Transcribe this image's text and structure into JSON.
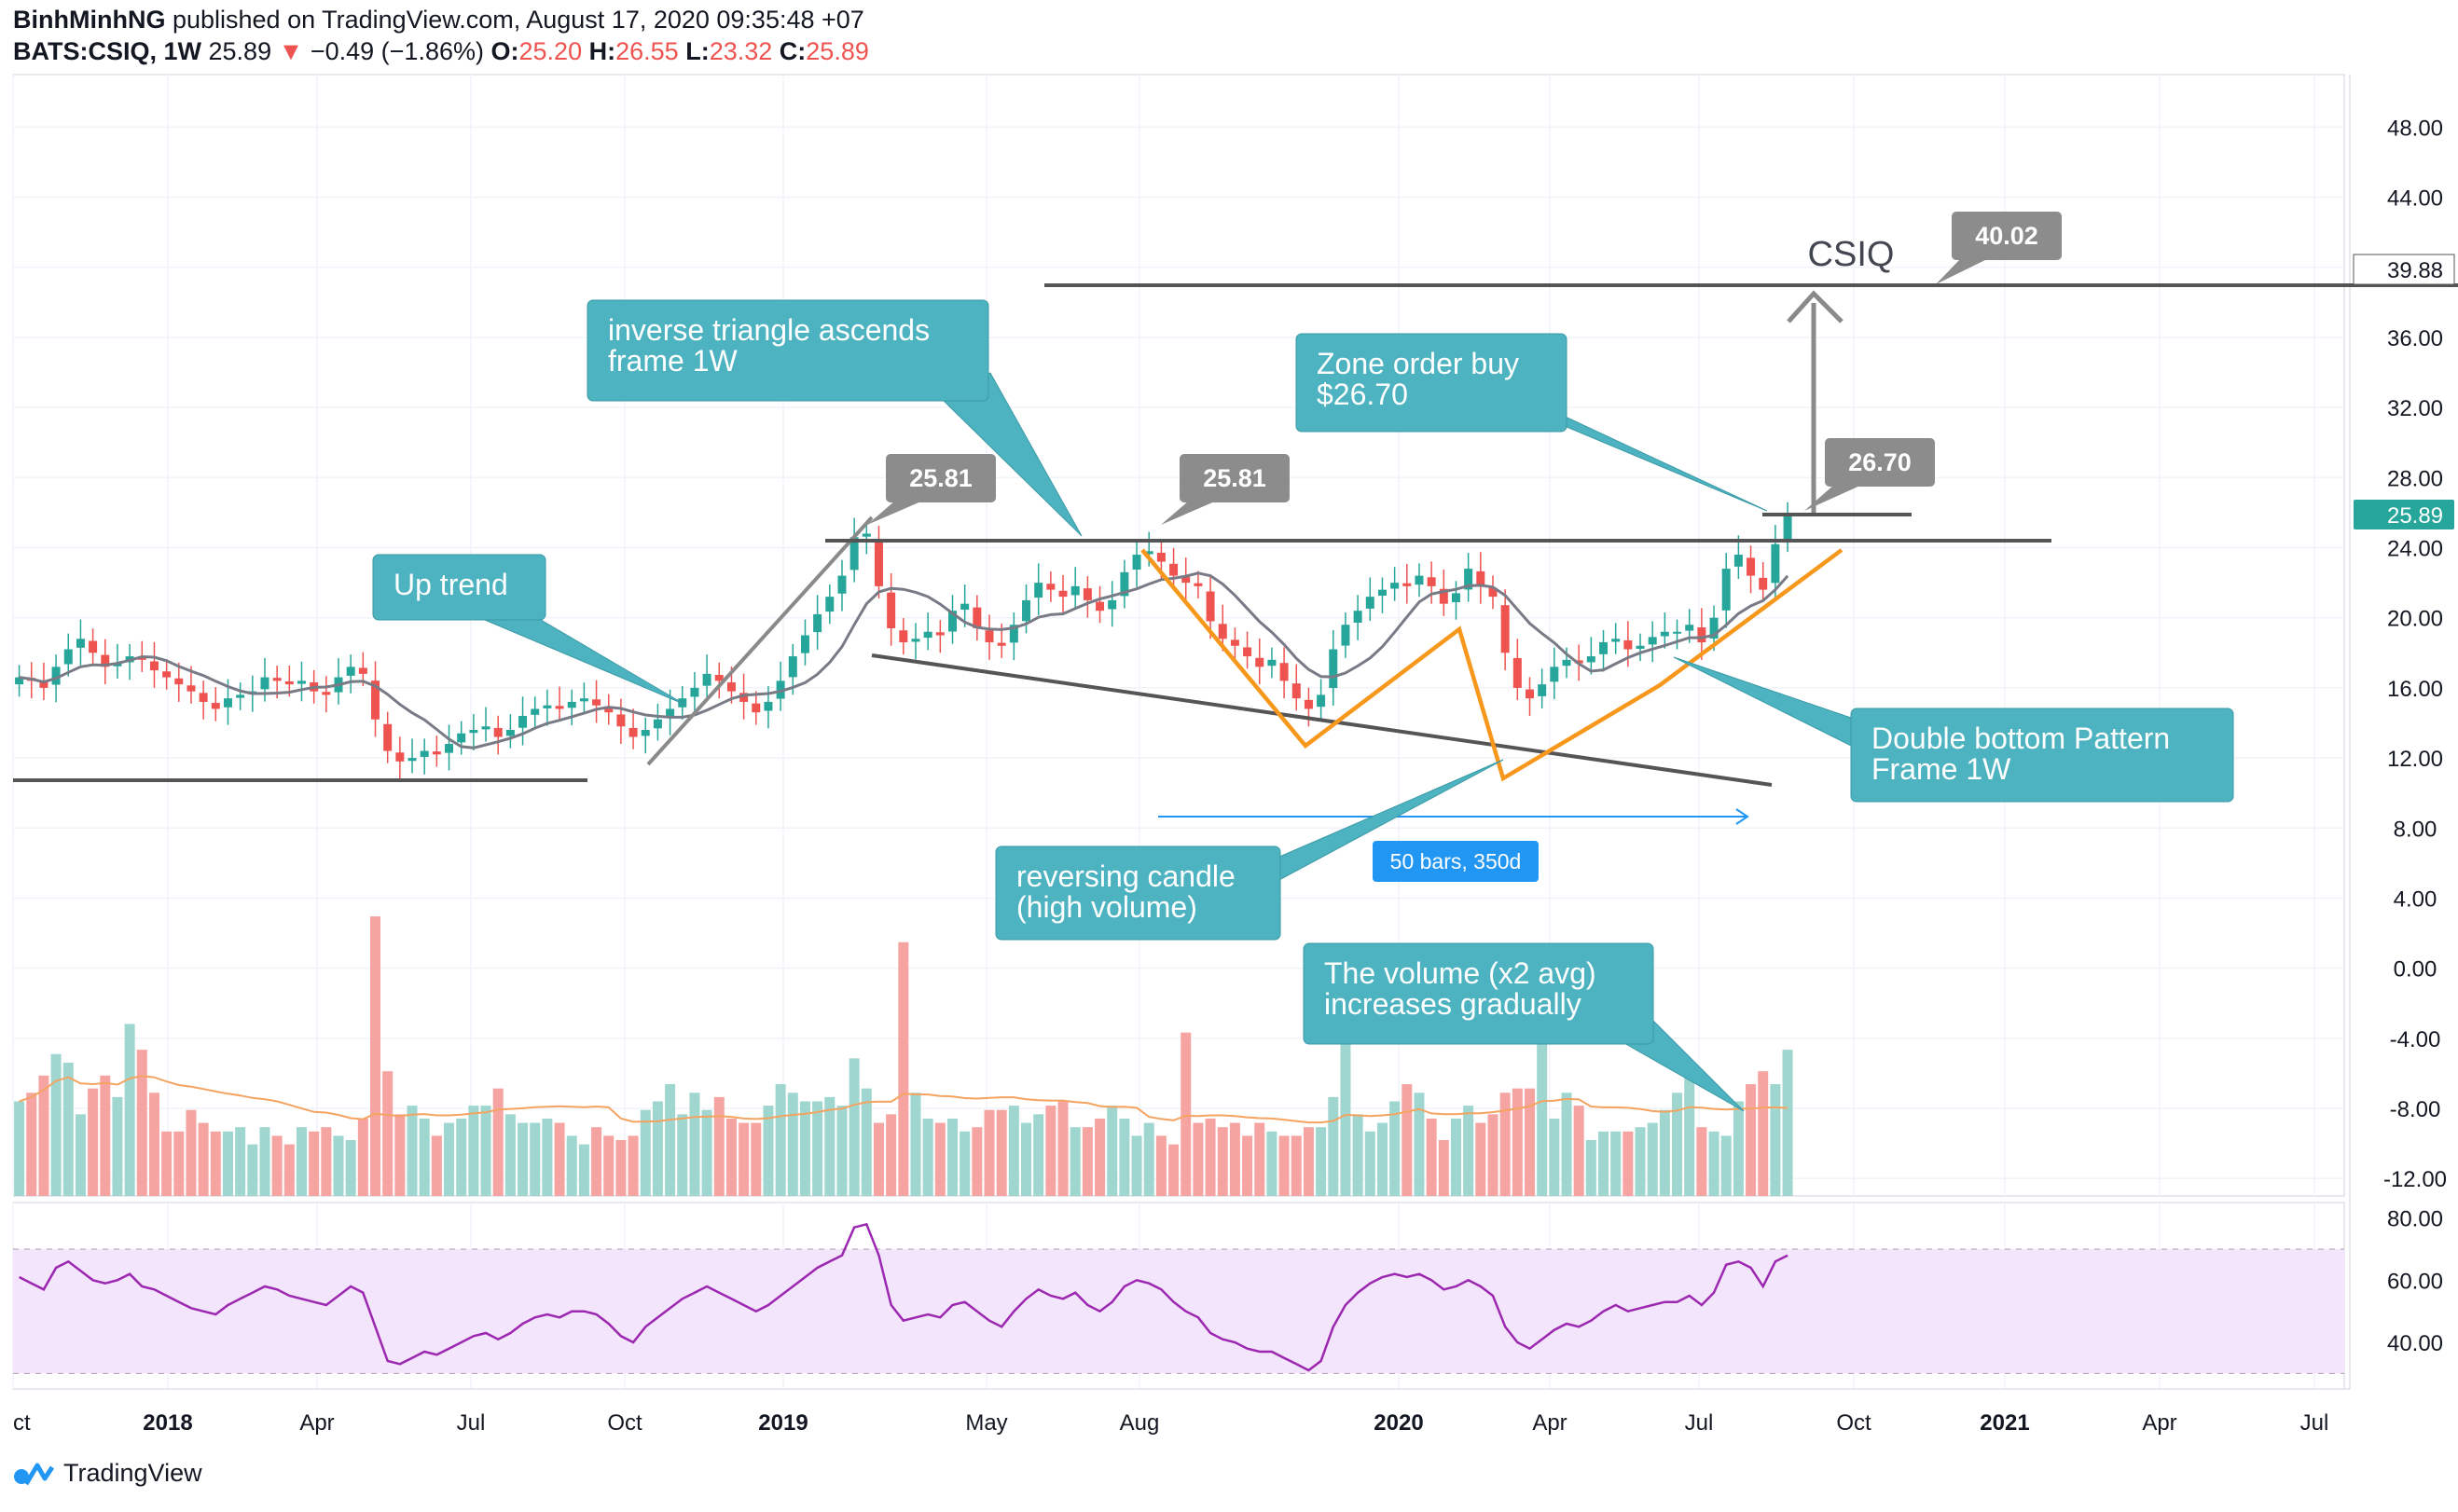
{
  "header": {
    "author": "BinhMinhNG",
    "published": "published on TradingView.com, August 17, 2020 09:35:48 +07",
    "symbol": "BATS:CSIQ, 1W",
    "last": "25.89",
    "change": "−0.49 (−1.86%)",
    "o_label": "O:",
    "o": "25.20",
    "h_label": "H:",
    "h": "26.55",
    "l_label": "L:",
    "l": "23.32",
    "c_label": "C:",
    "c": "25.89"
  },
  "brand": {
    "name": "TradingView",
    "icon": "tradingview-logo-icon"
  },
  "colors": {
    "up": "#26a69a",
    "down": "#ef5350",
    "ma": "#787b86",
    "volume_ma": "#f4a460",
    "rsi": "#9c27b0",
    "rsi_band": "#f3e5fb",
    "annotation": "#4eb3c1",
    "orange": "#f7981d",
    "trend_line": "#555555",
    "measure": "#2196f3"
  },
  "chart_data": {
    "type": "candlestick",
    "symbol": "BATS:CSIQ",
    "interval": "1W",
    "price_axis": {
      "ticks": [
        "48.00",
        "44.00",
        "40.00",
        "36.00",
        "32.00",
        "28.00",
        "24.00",
        "20.00",
        "16.00",
        "12.00",
        "8.00",
        "4.00",
        "0.00",
        "-4.00",
        "-8.00",
        "-12.00"
      ],
      "range": [
        -13,
        51
      ]
    },
    "time_axis": {
      "ticks": [
        {
          "label": "ct",
          "bold": false
        },
        {
          "label": "2018",
          "bold": true
        },
        {
          "label": "Apr",
          "bold": false
        },
        {
          "label": "Jul",
          "bold": false
        },
        {
          "label": "Oct",
          "bold": false
        },
        {
          "label": "2019",
          "bold": true
        },
        {
          "label": "May",
          "bold": false
        },
        {
          "label": "Aug",
          "bold": false
        },
        {
          "label": "2020",
          "bold": true
        },
        {
          "label": "Apr",
          "bold": false
        },
        {
          "label": "Jul",
          "bold": false
        },
        {
          "label": "Oct",
          "bold": false
        },
        {
          "label": "2021",
          "bold": true
        },
        {
          "label": "Apr",
          "bold": false
        },
        {
          "label": "Jul",
          "bold": false
        }
      ]
    },
    "closes": [
      16.6,
      16.4,
      16.0,
      17.2,
      18.2,
      18.8,
      18.0,
      17.2,
      17.4,
      17.8,
      17.6,
      17.0,
      16.6,
      16.2,
      15.8,
      15.2,
      14.8,
      15.4,
      15.6,
      15.8,
      16.6,
      16.4,
      16.2,
      16.4,
      15.8,
      15.6,
      16.6,
      17.2,
      16.8,
      14.2,
      12.4,
      11.8,
      12.0,
      12.4,
      12.2,
      12.8,
      13.4,
      13.6,
      13.8,
      13.2,
      13.6,
      14.4,
      14.8,
      15.0,
      14.8,
      15.2,
      15.4,
      15.0,
      14.6,
      13.8,
      13.2,
      13.6,
      14.2,
      14.8,
      15.4,
      16.0,
      16.8,
      16.4,
      15.8,
      15.2,
      14.6,
      15.2,
      16.4,
      17.8,
      19.0,
      20.2,
      21.2,
      22.4,
      24.6,
      24.8,
      21.8,
      19.4,
      18.6,
      18.8,
      19.2,
      19.0,
      20.4,
      20.8,
      19.4,
      18.6,
      18.4,
      19.6,
      21.0,
      22.0,
      21.6,
      21.2,
      21.8,
      21.0,
      20.4,
      21.0,
      22.6,
      23.6,
      23.8,
      23.2,
      22.4,
      22.0,
      21.8,
      19.8,
      18.8,
      18.4,
      17.8,
      17.2,
      17.6,
      16.4,
      15.4,
      14.8,
      15.6,
      18.2,
      19.6,
      20.4,
      21.2,
      21.6,
      22.0,
      21.8,
      22.4,
      21.8,
      20.8,
      21.4,
      22.8,
      21.8,
      21.2,
      18.0,
      16.0,
      15.4,
      16.2,
      17.2,
      17.6,
      17.4,
      17.8,
      18.6,
      18.8,
      18.2,
      18.4,
      18.9,
      19.2,
      19.2,
      19.6,
      18.6,
      20.0,
      22.8,
      23.6,
      22.4,
      21.6,
      24.2,
      25.89
    ],
    "volume": [
      22,
      24,
      28,
      33,
      31,
      19,
      25,
      28,
      23,
      40,
      34,
      24,
      15,
      15,
      20,
      17,
      15,
      15,
      16,
      12,
      16,
      14,
      12,
      16,
      15,
      16,
      14,
      13,
      18,
      65,
      29,
      19,
      21,
      18,
      14,
      17,
      18,
      21,
      21,
      25,
      19,
      17,
      17,
      18,
      17,
      14,
      12,
      16,
      14,
      13,
      14,
      20,
      22,
      26,
      19,
      24,
      20,
      23,
      18,
      17,
      17,
      21,
      26,
      24,
      22,
      22,
      23,
      21,
      32,
      25,
      17,
      19,
      59,
      24,
      18,
      17,
      18,
      15,
      16,
      20,
      20,
      21,
      17,
      19,
      21,
      22,
      16,
      16,
      18,
      21,
      18,
      14,
      17,
      14,
      12,
      38,
      17,
      18,
      16,
      17,
      14,
      17,
      15,
      14,
      14,
      16,
      16,
      23,
      46,
      19,
      15,
      17,
      22,
      26,
      24,
      18,
      13,
      18,
      21,
      17,
      19,
      24,
      25,
      25,
      37,
      18,
      24,
      21,
      13,
      15,
      15,
      15,
      16,
      17,
      20,
      24,
      29,
      16,
      15,
      14,
      22,
      26,
      29,
      26,
      34
    ],
    "volume_axis_max": 70,
    "rsi": {
      "values": [
        61,
        59,
        57,
        64,
        66,
        63,
        60,
        59,
        60,
        62,
        58,
        57,
        55,
        53,
        51,
        50,
        49,
        52,
        54,
        56,
        58,
        57,
        55,
        54,
        53,
        52,
        55,
        58,
        56,
        45,
        34,
        33,
        35,
        37,
        36,
        38,
        40,
        42,
        43,
        41,
        43,
        46,
        48,
        49,
        48,
        50,
        50,
        49,
        46,
        42,
        40,
        45,
        48,
        51,
        54,
        56,
        58,
        56,
        54,
        52,
        50,
        52,
        55,
        58,
        61,
        64,
        66,
        68,
        77,
        78,
        68,
        52,
        47,
        48,
        49,
        48,
        52,
        53,
        50,
        47,
        45,
        50,
        54,
        57,
        55,
        54,
        56,
        52,
        50,
        53,
        58,
        60,
        59,
        57,
        53,
        50,
        48,
        43,
        41,
        40,
        38,
        37,
        37,
        35,
        33,
        31,
        34,
        45,
        52,
        56,
        59,
        61,
        62,
        61,
        62,
        60,
        57,
        58,
        60,
        58,
        55,
        45,
        40,
        38,
        41,
        44,
        46,
        45,
        47,
        50,
        52,
        50,
        51,
        52,
        53,
        53,
        55,
        52,
        56,
        65,
        66,
        64,
        58,
        66,
        68
      ],
      "ticks": [
        "80.00",
        "60.00",
        "40.00"
      ],
      "range": [
        25,
        85
      ],
      "band": [
        30,
        70
      ]
    },
    "levels": [
      {
        "price": 39.88,
        "label": "39.88"
      },
      {
        "price": 25.89,
        "label": "25.89"
      }
    ],
    "price_callouts": [
      "25.81",
      "25.81",
      "26.70",
      "40.02"
    ],
    "annotations": {
      "csiq_label": "CSIQ",
      "up_trend": "Up trend",
      "inverse_triangle": [
        "inverse triangle ascends",
        "frame 1W"
      ],
      "zone_order": [
        "Zone order buy",
        "$26.70"
      ],
      "double_bottom": [
        "Double bottom Pattern",
        "Frame 1W"
      ],
      "reversing_candle": [
        "reversing candle",
        "(high volume)"
      ],
      "volume_note": [
        "The volume (x2 avg)",
        "increases gradually"
      ],
      "measure": "50 bars, 350d"
    }
  }
}
